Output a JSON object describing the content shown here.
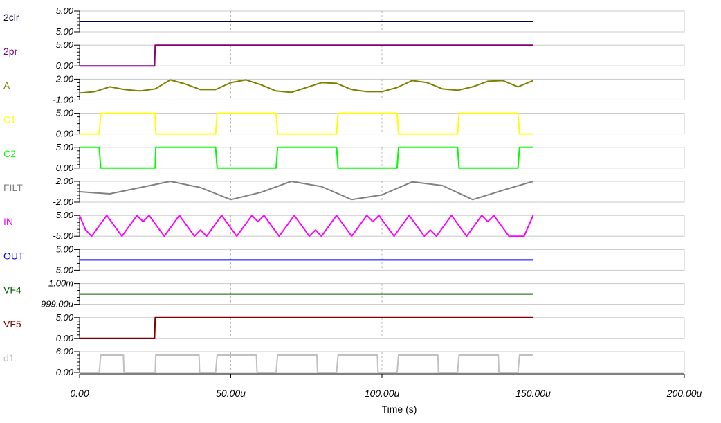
{
  "chart_data": {
    "type": "line",
    "xlabel": "Time (s)",
    "x_unit": "s",
    "xlim": [
      0,
      0.0002
    ],
    "sim_end": 0.00015,
    "x_ticks": [
      {
        "value": 0,
        "label": "0.00"
      },
      {
        "value": 5e-05,
        "label": "50.00u"
      },
      {
        "value": 0.0001,
        "label": "100.00u"
      },
      {
        "value": 0.00015,
        "label": "150.00u"
      },
      {
        "value": 0.0002,
        "label": "200.00u"
      }
    ],
    "grid": "vertical-dashed",
    "traces": [
      {
        "name": "2clr",
        "color": "#000040",
        "ytick_top": "5.00",
        "ytick_bottom": "5.00",
        "ylim": [
          4.9,
          5.1
        ],
        "points": [
          [
            0,
            5
          ],
          [
            0.00015,
            5
          ]
        ]
      },
      {
        "name": "2pr",
        "color": "#800080",
        "ytick_top": "5.00",
        "ytick_bottom": "0.00",
        "ylim": [
          0,
          5
        ],
        "points": [
          [
            0,
            0
          ],
          [
            2.48e-05,
            0
          ],
          [
            2.5e-05,
            5
          ],
          [
            0.00015,
            5
          ]
        ]
      },
      {
        "name": "A",
        "color": "#808000",
        "ytick_top": "2.00",
        "ytick_bottom": "-1.00",
        "ylim": [
          -1,
          2
        ],
        "points": [
          [
            0,
            0
          ],
          [
            5e-06,
            0.2
          ],
          [
            1e-05,
            0.9
          ],
          [
            1.5e-05,
            0.5
          ],
          [
            2e-05,
            0.3
          ],
          [
            2.5e-05,
            0.6
          ],
          [
            3e-05,
            1.9
          ],
          [
            3.5e-05,
            1.3
          ],
          [
            4e-05,
            0.5
          ],
          [
            4.5e-05,
            0.5
          ],
          [
            5e-05,
            1.5
          ],
          [
            5.5e-05,
            1.9
          ],
          [
            6e-05,
            1.2
          ],
          [
            6.5e-05,
            0.3
          ],
          [
            7e-05,
            0.1
          ],
          [
            7.5e-05,
            0.8
          ],
          [
            8e-05,
            1.5
          ],
          [
            8.5e-05,
            1.4
          ],
          [
            9e-05,
            0.5
          ],
          [
            9.5e-05,
            0.2
          ],
          [
            0.0001,
            0.2
          ],
          [
            0.000105,
            0.8
          ],
          [
            0.00011,
            1.8
          ],
          [
            0.000115,
            1.5
          ],
          [
            0.00012,
            0.6
          ],
          [
            0.000125,
            0.4
          ],
          [
            0.00013,
            0.9
          ],
          [
            0.000135,
            1.7
          ],
          [
            0.00014,
            1.8
          ],
          [
            0.000145,
            0.9
          ],
          [
            0.00015,
            1.8
          ]
        ]
      },
      {
        "name": "C1",
        "color": "#ffff00",
        "ytick_top": "5.00",
        "ytick_bottom": "0.00",
        "ylim": [
          0,
          5
        ],
        "points": [
          [
            0,
            0
          ],
          [
            6.5e-06,
            0
          ],
          [
            7e-06,
            5
          ],
          [
            2.5e-05,
            5
          ],
          [
            2.52e-05,
            0
          ],
          [
            4.5e-05,
            0
          ],
          [
            4.55e-05,
            5
          ],
          [
            6.5e-05,
            5
          ],
          [
            6.55e-05,
            0
          ],
          [
            8.5e-05,
            0
          ],
          [
            8.55e-05,
            5
          ],
          [
            0.000105,
            5
          ],
          [
            0.0001055,
            0
          ],
          [
            0.000125,
            0
          ],
          [
            0.0001255,
            5
          ],
          [
            0.000145,
            5
          ],
          [
            0.0001455,
            0
          ],
          [
            0.00015,
            0
          ]
        ]
      },
      {
        "name": "C2",
        "color": "#00ff00",
        "ytick_top": "5.00",
        "ytick_bottom": "0.00",
        "ylim": [
          0,
          5
        ],
        "points": [
          [
            0,
            5
          ],
          [
            6.5e-06,
            5
          ],
          [
            7e-06,
            0
          ],
          [
            2.5e-05,
            0
          ],
          [
            2.52e-05,
            5
          ],
          [
            4.5e-05,
            5
          ],
          [
            4.55e-05,
            0
          ],
          [
            6.5e-05,
            0
          ],
          [
            6.55e-05,
            5
          ],
          [
            8.5e-05,
            5
          ],
          [
            8.55e-05,
            0
          ],
          [
            0.000105,
            0
          ],
          [
            0.0001055,
            5
          ],
          [
            0.000125,
            5
          ],
          [
            0.0001255,
            0
          ],
          [
            0.000145,
            0
          ],
          [
            0.0001455,
            5
          ],
          [
            0.00015,
            5
          ]
        ]
      },
      {
        "name": "FILT",
        "color": "#808080",
        "ytick_top": "2.00",
        "ytick_bottom": "-2.00",
        "ylim": [
          -2,
          2
        ],
        "points": [
          [
            0,
            0
          ],
          [
            1e-05,
            -0.4
          ],
          [
            2e-05,
            0.8
          ],
          [
            3e-05,
            2
          ],
          [
            4e-05,
            0.8
          ],
          [
            5e-05,
            -1.5
          ],
          [
            6e-05,
            -0.1
          ],
          [
            7e-05,
            2
          ],
          [
            8e-05,
            1.0
          ],
          [
            9e-05,
            -1.5
          ],
          [
            0.0001,
            -0.6
          ],
          [
            0.00011,
            1.9
          ],
          [
            0.00012,
            1.2
          ],
          [
            0.00013,
            -1.5
          ],
          [
            0.00014,
            0.3
          ],
          [
            0.00015,
            2
          ]
        ]
      },
      {
        "name": "IN",
        "color": "#ff00ff",
        "ytick_top": "5.00",
        "ytick_bottom": "-5.00",
        "ylim": [
          -5,
          5
        ],
        "points": [
          [
            0,
            5
          ],
          [
            2e-06,
            -2
          ],
          [
            4e-06,
            -5
          ],
          [
            9e-06,
            5
          ],
          [
            1.4e-05,
            -5
          ],
          [
            1.9e-05,
            5
          ],
          [
            2.1e-05,
            2
          ],
          [
            2.3e-05,
            5
          ],
          [
            2.8e-05,
            -5
          ],
          [
            3.3e-05,
            5
          ],
          [
            3.8e-05,
            -5
          ],
          [
            4e-05,
            -2
          ],
          [
            4.2e-05,
            -5
          ],
          [
            4.7e-05,
            5
          ],
          [
            5.2e-05,
            -5
          ],
          [
            5.7e-05,
            5
          ],
          [
            5.9e-05,
            2
          ],
          [
            6.1e-05,
            5
          ],
          [
            6.6e-05,
            -5
          ],
          [
            7.1e-05,
            5
          ],
          [
            7.6e-05,
            -5
          ],
          [
            7.8e-05,
            -2
          ],
          [
            8e-05,
            -5
          ],
          [
            8.5e-05,
            5
          ],
          [
            9e-05,
            -5
          ],
          [
            9.5e-05,
            5
          ],
          [
            9.7e-05,
            2
          ],
          [
            9.9e-05,
            5
          ],
          [
            0.000104,
            -5
          ],
          [
            0.000109,
            5
          ],
          [
            0.000114,
            -5
          ],
          [
            0.000116,
            -2
          ],
          [
            0.000118,
            -5
          ],
          [
            0.000123,
            5
          ],
          [
            0.000128,
            -5
          ],
          [
            0.000133,
            5
          ],
          [
            0.000135,
            2
          ],
          [
            0.000137,
            5
          ],
          [
            0.000142,
            -5
          ],
          [
            0.000147,
            -5
          ],
          [
            0.00015,
            5
          ]
        ]
      },
      {
        "name": "OUT",
        "color": "#0000ff",
        "ytick_top": "5.00",
        "ytick_bottom": "5.00",
        "ylim": [
          4.9,
          5.1
        ],
        "points": [
          [
            0,
            5
          ],
          [
            0.00015,
            5
          ]
        ]
      },
      {
        "name": "VF4",
        "color": "#006400",
        "ytick_top": "1.00m",
        "ytick_bottom": "999.00u",
        "ylim": [
          0.000999,
          0.001
        ],
        "points": [
          [
            0,
            0.0009995
          ],
          [
            0.00015,
            0.0009995
          ]
        ]
      },
      {
        "name": "VF5",
        "color": "#800000",
        "ytick_top": "5.00",
        "ytick_bottom": "0.00",
        "ylim": [
          0,
          5
        ],
        "points": [
          [
            0,
            0
          ],
          [
            2.48e-05,
            0
          ],
          [
            2.5e-05,
            5
          ],
          [
            0.00015,
            5
          ]
        ]
      },
      {
        "name": "d1",
        "color": "#c0c0c0",
        "ytick_top": "6.00",
        "ytick_bottom": "0.00",
        "ylim": [
          0,
          6
        ],
        "points": [
          [
            0,
            0
          ],
          [
            6.5e-06,
            0
          ],
          [
            7e-06,
            5
          ],
          [
            1.45e-05,
            5
          ],
          [
            1.47e-05,
            0
          ],
          [
            2.5e-05,
            0
          ],
          [
            2.52e-05,
            5
          ],
          [
            3.95e-05,
            5
          ],
          [
            3.97e-05,
            0
          ],
          [
            4.5e-05,
            0
          ],
          [
            4.55e-05,
            5
          ],
          [
            5.85e-05,
            5
          ],
          [
            5.87e-05,
            0
          ],
          [
            6.5e-05,
            0
          ],
          [
            6.55e-05,
            5
          ],
          [
            7.85e-05,
            5
          ],
          [
            7.87e-05,
            0
          ],
          [
            8.5e-05,
            0
          ],
          [
            8.55e-05,
            5
          ],
          [
            9.85e-05,
            5
          ],
          [
            9.87e-05,
            0
          ],
          [
            0.000105,
            0
          ],
          [
            0.0001055,
            5
          ],
          [
            0.0001185,
            5
          ],
          [
            0.0001187,
            0
          ],
          [
            0.000125,
            0
          ],
          [
            0.0001255,
            5
          ],
          [
            0.0001385,
            5
          ],
          [
            0.0001387,
            0
          ],
          [
            0.000145,
            0
          ],
          [
            0.0001455,
            5
          ],
          [
            0.00015,
            5
          ]
        ]
      }
    ]
  }
}
